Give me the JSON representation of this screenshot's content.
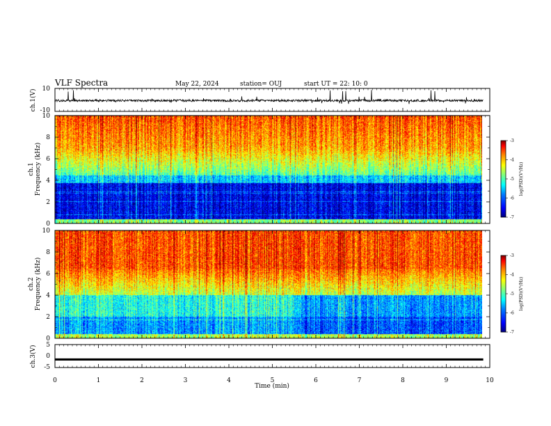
{
  "header": {
    "title": "VLF Spectra",
    "date": "May 22, 2024",
    "station": "station= OUJ",
    "start": "start  UT  =   22: 10: 0"
  },
  "panels": {
    "ch1_wave": {
      "label": "ch.1(V)",
      "yticks": [
        "10",
        "-10"
      ]
    },
    "ch1_spec": {
      "label_top": "ch.1",
      "label_bottom": "Frequency (kHz)",
      "yticks": [
        "0",
        "2",
        "4",
        "6",
        "8",
        "10"
      ]
    },
    "ch2_spec": {
      "label_top": "ch.2",
      "label_bottom": "Frequency (kHz)",
      "yticks": [
        "0",
        "2",
        "4",
        "6",
        "8",
        "10"
      ]
    },
    "ch3_wave": {
      "label": "ch.3(V)",
      "yticks": [
        "5",
        "0",
        "-5"
      ]
    }
  },
  "colorbar": {
    "label": "log(PSD)(V²/Hz)",
    "ticks": [
      "-3",
      "-4",
      "-5",
      "-6",
      "-7"
    ]
  },
  "xaxis": {
    "label": "Time (min)",
    "ticks": [
      "0",
      "1",
      "2",
      "3",
      "4",
      "5",
      "6",
      "7",
      "8",
      "9",
      "10"
    ]
  },
  "chart_data": [
    {
      "type": "line",
      "name": "ch.1",
      "ylabel": "ch.1(V)",
      "xlabel": "Time (min)",
      "xlim": [
        0,
        10
      ],
      "ylim": [
        -10,
        10
      ],
      "x_extent": [
        0,
        9.85
      ],
      "baseline": 0
    },
    {
      "type": "heatmap",
      "name": "ch.1",
      "ylabel": "Frequency (kHz)",
      "xlabel": "Time (min)",
      "xlim": [
        0,
        10
      ],
      "ylim": [
        0,
        10
      ],
      "colorbar_range": [
        -7,
        -3
      ],
      "colorbar_label": "log(PSD)(V²/Hz)"
    },
    {
      "type": "heatmap",
      "name": "ch.2",
      "ylabel": "Frequency (kHz)",
      "xlabel": "Time (min)",
      "xlim": [
        0,
        10
      ],
      "ylim": [
        0,
        10
      ],
      "colorbar_range": [
        -7,
        -3
      ],
      "colorbar_label": "log(PSD)(V²/Hz)"
    },
    {
      "type": "line",
      "name": "ch.3",
      "ylabel": "ch.3(V)",
      "xlabel": "Time (min)",
      "xlim": [
        0,
        10
      ],
      "ylim": [
        -5,
        5
      ],
      "x_extent": [
        0,
        9.85
      ],
      "baseline": -1.5
    }
  ],
  "colors": {
    "jet": [
      "#00007f",
      "#0000ff",
      "#007fff",
      "#00ffff",
      "#7fff7f",
      "#ffff00",
      "#ff7f00",
      "#ff0000",
      "#7f0000"
    ]
  }
}
